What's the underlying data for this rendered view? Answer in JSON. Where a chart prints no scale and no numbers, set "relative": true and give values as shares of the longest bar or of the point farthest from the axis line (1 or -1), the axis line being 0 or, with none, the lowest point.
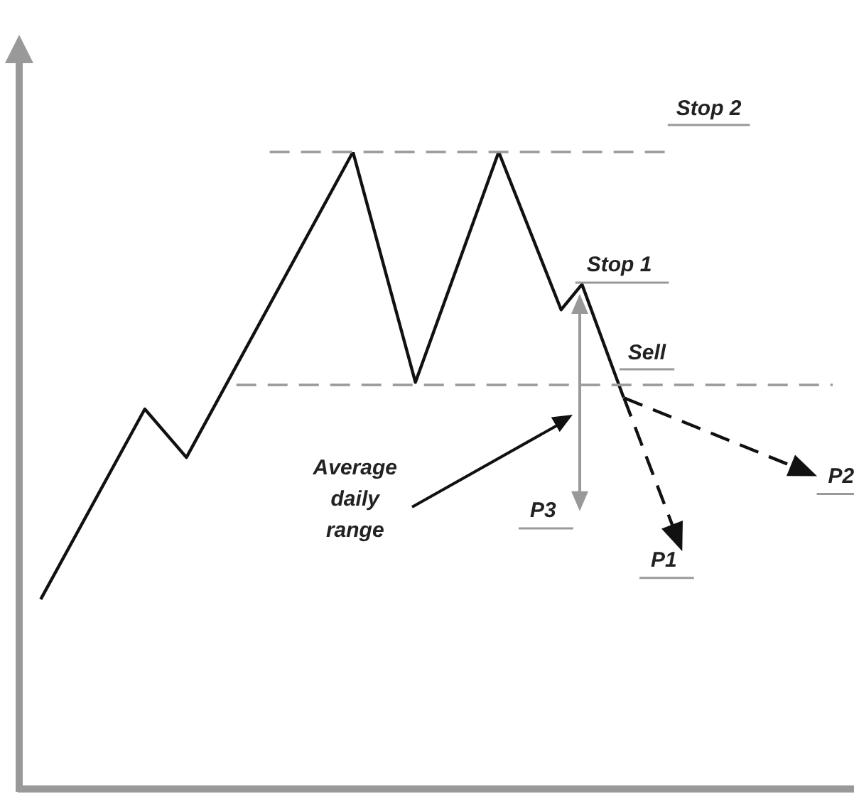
{
  "chart_data": {
    "type": "line",
    "relative": true,
    "marker": "none",
    "legend": false,
    "categories": [
      null,
      null,
      null,
      null,
      null,
      null,
      null,
      null,
      null,
      null,
      null,
      null,
      null,
      null,
      null,
      null,
      null,
      null,
      null,
      null,
      null,
      null,
      null,
      null,
      null,
      null,
      null,
      null,
      null,
      null,
      null,
      null,
      null,
      null,
      null,
      null,
      null,
      null,
      null,
      null,
      null
    ],
    "series": [
      {
        "color": "#111111",
        "values": [
          null,
          0.297,
          null,
          null,
          null,
          null,
          0.596,
          null,
          0.52,
          null,
          null,
          null,
          null,
          null,
          null,
          null,
          1,
          null,
          null,
          0.638,
          null,
          null,
          null,
          1,
          null,
          null,
          0.752,
          0.792,
          null,
          0.614,
          null,
          null,
          null,
          null,
          null,
          null,
          null,
          null,
          null,
          null,
          null
        ]
      }
    ],
    "ref_lines": [
      {
        "axis": "y",
        "value": 1,
        "label": "Stop 2",
        "color": "#999999",
        "line_style": "dashed"
      },
      {
        "axis": "y",
        "value": 0.634,
        "label": "Sell",
        "color": "#999999",
        "line_style": "dashed"
      }
    ],
    "annotations": [
      "Stop 1",
      "P3",
      "P2",
      "P1",
      "Average daily range"
    ]
  }
}
